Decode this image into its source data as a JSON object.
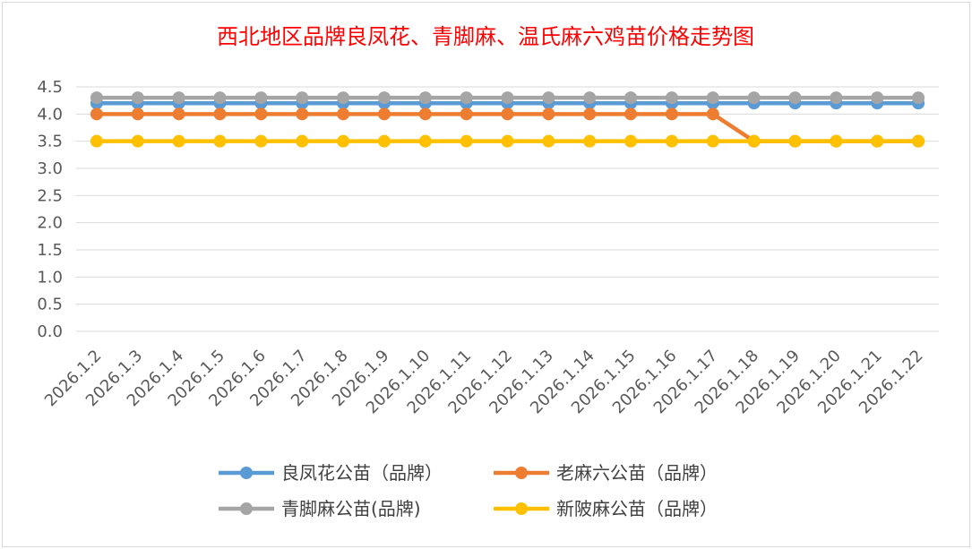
{
  "chart_data": {
    "type": "line",
    "title": "西北地区品牌良凤花、青脚麻、温氏麻六鸡苗价格走势图",
    "xlabel": "",
    "ylabel": "",
    "ylim": [
      0,
      4.5
    ],
    "yticks": [
      "0.0",
      "0.5",
      "1.0",
      "1.5",
      "2.0",
      "2.5",
      "3.0",
      "3.5",
      "4.0",
      "4.5"
    ],
    "grid": true,
    "legend_position": "bottom",
    "categories": [
      "2026.1.2",
      "2026.1.3",
      "2026.1.4",
      "2026.1.5",
      "2026.1.6",
      "2026.1.7",
      "2026.1.8",
      "2026.1.9",
      "2026.1.10",
      "2026.1.11",
      "2026.1.12",
      "2026.1.13",
      "2026.1.14",
      "2026.1.15",
      "2026.1.16",
      "2026.1.17",
      "2026.1.18",
      "2026.1.19",
      "2026.1.20",
      "2026.1.21",
      "2026.1.22"
    ],
    "series": [
      {
        "name": "良凤花公苗（品牌）",
        "color": "#5b9bd5",
        "values": [
          4.2,
          4.2,
          4.2,
          4.2,
          4.2,
          4.2,
          4.2,
          4.2,
          4.2,
          4.2,
          4.2,
          4.2,
          4.2,
          4.2,
          4.2,
          4.2,
          4.2,
          4.2,
          4.2,
          4.2,
          4.2
        ]
      },
      {
        "name": "老麻六公苗（品牌）",
        "color": "#ed7d31",
        "values": [
          4.0,
          4.0,
          4.0,
          4.0,
          4.0,
          4.0,
          4.0,
          4.0,
          4.0,
          4.0,
          4.0,
          4.0,
          4.0,
          4.0,
          4.0,
          4.0,
          3.5,
          3.5,
          3.5,
          3.5,
          3.5
        ]
      },
      {
        "name": "青脚麻公苗(品牌)",
        "color": "#a5a5a5",
        "values": [
          4.3,
          4.3,
          4.3,
          4.3,
          4.3,
          4.3,
          4.3,
          4.3,
          4.3,
          4.3,
          4.3,
          4.3,
          4.3,
          4.3,
          4.3,
          4.3,
          4.3,
          4.3,
          4.3,
          4.3,
          4.3
        ]
      },
      {
        "name": "新陂麻公苗（品牌）",
        "color": "#ffc000",
        "values": [
          3.5,
          3.5,
          3.5,
          3.5,
          3.5,
          3.5,
          3.5,
          3.5,
          3.5,
          3.5,
          3.5,
          3.5,
          3.5,
          3.5,
          3.5,
          3.5,
          3.5,
          3.5,
          3.5,
          3.5,
          3.5
        ]
      }
    ],
    "legend_order": [
      0,
      1,
      2,
      3
    ]
  }
}
